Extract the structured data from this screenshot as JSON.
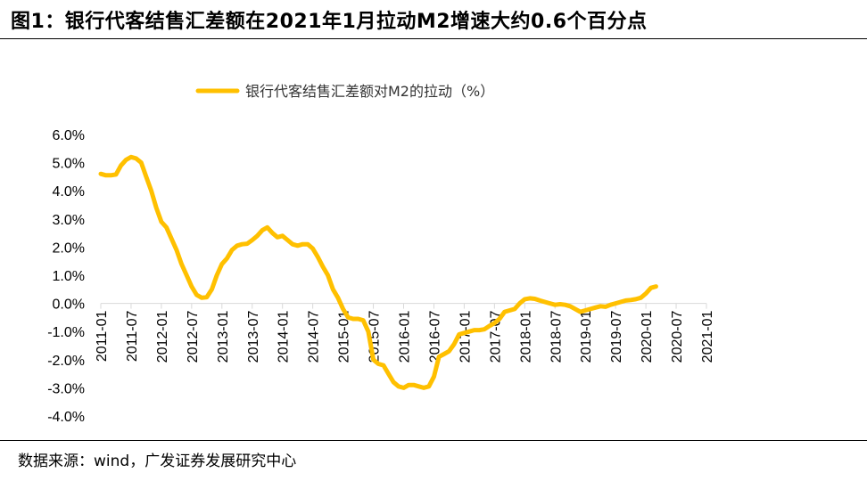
{
  "header": {
    "title": "图1：银行代客结售汇差额在2021年1月拉动M2增速大约0.6个百分点"
  },
  "footer": {
    "source": "数据来源：wind，广发证券发展研究中心"
  },
  "colors": {
    "series": "#FFC000",
    "axis": "#D9D9D9",
    "text": "#000000"
  },
  "chart_data": {
    "type": "line",
    "title": "",
    "xlabel": "",
    "ylabel": "",
    "ylim": [
      -0.04,
      0.06
    ],
    "y_tick_values": [
      0.06,
      0.05,
      0.04,
      0.03,
      0.02,
      0.01,
      0.0,
      -0.01,
      -0.02,
      -0.03,
      -0.04
    ],
    "y_tick_labels": [
      "6.0%",
      "5.0%",
      "4.0%",
      "3.0%",
      "2.0%",
      "1.0%",
      "0.0%",
      "-1.0%",
      "-2.0%",
      "-3.0%",
      "-4.0%"
    ],
    "x_range_months": [
      0,
      120
    ],
    "x_tick_months": [
      0,
      6,
      12,
      18,
      24,
      30,
      36,
      42,
      48,
      54,
      60,
      66,
      72,
      78,
      84,
      90,
      96,
      102,
      108,
      114,
      120
    ],
    "x_tick_labels": [
      "2011-01",
      "2011-07",
      "2012-01",
      "2012-07",
      "2013-01",
      "2013-07",
      "2014-01",
      "2014-07",
      "2015-01",
      "2015-07",
      "2016-01",
      "2016-07",
      "2017-01",
      "2017-07",
      "2018-01",
      "2018-07",
      "2019-01",
      "2019-07",
      "2020-01",
      "2020-07",
      "2021-01"
    ],
    "legend": {
      "position": "top-left"
    },
    "series": [
      {
        "name": "银行代客结售汇差额对M2的拉动（%）",
        "points": [
          [
            0,
            0.046
          ],
          [
            1,
            0.0455
          ],
          [
            2,
            0.0455
          ],
          [
            3,
            0.0458
          ],
          [
            4,
            0.049
          ],
          [
            5,
            0.051
          ],
          [
            6,
            0.052
          ],
          [
            7,
            0.0515
          ],
          [
            8,
            0.05
          ],
          [
            9,
            0.045
          ],
          [
            10,
            0.04
          ],
          [
            11,
            0.034
          ],
          [
            12,
            0.029
          ],
          [
            13,
            0.027
          ],
          [
            14,
            0.023
          ],
          [
            15,
            0.019
          ],
          [
            16,
            0.014
          ],
          [
            17,
            0.01
          ],
          [
            18,
            0.006
          ],
          [
            19,
            0.003
          ],
          [
            20,
            0.002
          ],
          [
            21,
            0.0022
          ],
          [
            22,
            0.005
          ],
          [
            23,
            0.01
          ],
          [
            24,
            0.014
          ],
          [
            25,
            0.016
          ],
          [
            26,
            0.019
          ],
          [
            27,
            0.0205
          ],
          [
            28,
            0.021
          ],
          [
            29,
            0.0212
          ],
          [
            30,
            0.0225
          ],
          [
            31,
            0.024
          ],
          [
            32,
            0.026
          ],
          [
            33,
            0.027
          ],
          [
            34,
            0.025
          ],
          [
            35,
            0.0235
          ],
          [
            36,
            0.024
          ],
          [
            37,
            0.0225
          ],
          [
            38,
            0.021
          ],
          [
            39,
            0.0205
          ],
          [
            40,
            0.021
          ],
          [
            41,
            0.021
          ],
          [
            42,
            0.0195
          ],
          [
            43,
            0.0165
          ],
          [
            44,
            0.013
          ],
          [
            45,
            0.01
          ],
          [
            46,
            0.005
          ],
          [
            47,
            0.002
          ],
          [
            48,
            -0.002
          ],
          [
            49,
            -0.005
          ],
          [
            50,
            -0.0055
          ],
          [
            51,
            -0.0055
          ],
          [
            52,
            -0.006
          ],
          [
            53,
            -0.01
          ],
          [
            54,
            -0.02
          ],
          [
            55,
            -0.0215
          ],
          [
            56,
            -0.022
          ],
          [
            57,
            -0.025
          ],
          [
            58,
            -0.028
          ],
          [
            59,
            -0.0295
          ],
          [
            60,
            -0.03
          ],
          [
            61,
            -0.029
          ],
          [
            62,
            -0.029
          ],
          [
            63,
            -0.0295
          ],
          [
            64,
            -0.03
          ],
          [
            65,
            -0.0295
          ],
          [
            66,
            -0.026
          ],
          [
            67,
            -0.019
          ],
          [
            68,
            -0.018
          ],
          [
            69,
            -0.017
          ],
          [
            70,
            -0.0145
          ],
          [
            71,
            -0.011
          ],
          [
            72,
            -0.0105
          ],
          [
            73,
            -0.01
          ],
          [
            74,
            -0.0095
          ],
          [
            75,
            -0.0095
          ],
          [
            76,
            -0.0092
          ],
          [
            77,
            -0.008
          ],
          [
            78,
            -0.007
          ],
          [
            79,
            -0.0055
          ],
          [
            80,
            -0.003
          ],
          [
            81,
            -0.0025
          ],
          [
            82,
            -0.002
          ],
          [
            83,
            0.0
          ],
          [
            84,
            0.0015
          ],
          [
            85,
            0.0018
          ],
          [
            86,
            0.0016
          ],
          [
            87,
            0.001
          ],
          [
            88,
            0.0005
          ],
          [
            89,
            0.0
          ],
          [
            90,
            -0.0005
          ],
          [
            91,
            -0.0003
          ],
          [
            92,
            -0.0005
          ],
          [
            93,
            -0.001
          ],
          [
            94,
            -0.002
          ],
          [
            95,
            -0.003
          ],
          [
            96,
            -0.0025
          ],
          [
            97,
            -0.002
          ],
          [
            98,
            -0.0015
          ],
          [
            99,
            -0.001
          ],
          [
            100,
            -0.0012
          ],
          [
            101,
            -0.0005
          ],
          [
            102,
            0.0
          ],
          [
            103,
            0.0005
          ],
          [
            104,
            0.001
          ],
          [
            105,
            0.0012
          ],
          [
            106,
            0.0015
          ],
          [
            107,
            0.002
          ],
          [
            108,
            0.0035
          ],
          [
            109,
            0.0055
          ],
          [
            110,
            0.006
          ]
        ]
      }
    ]
  }
}
